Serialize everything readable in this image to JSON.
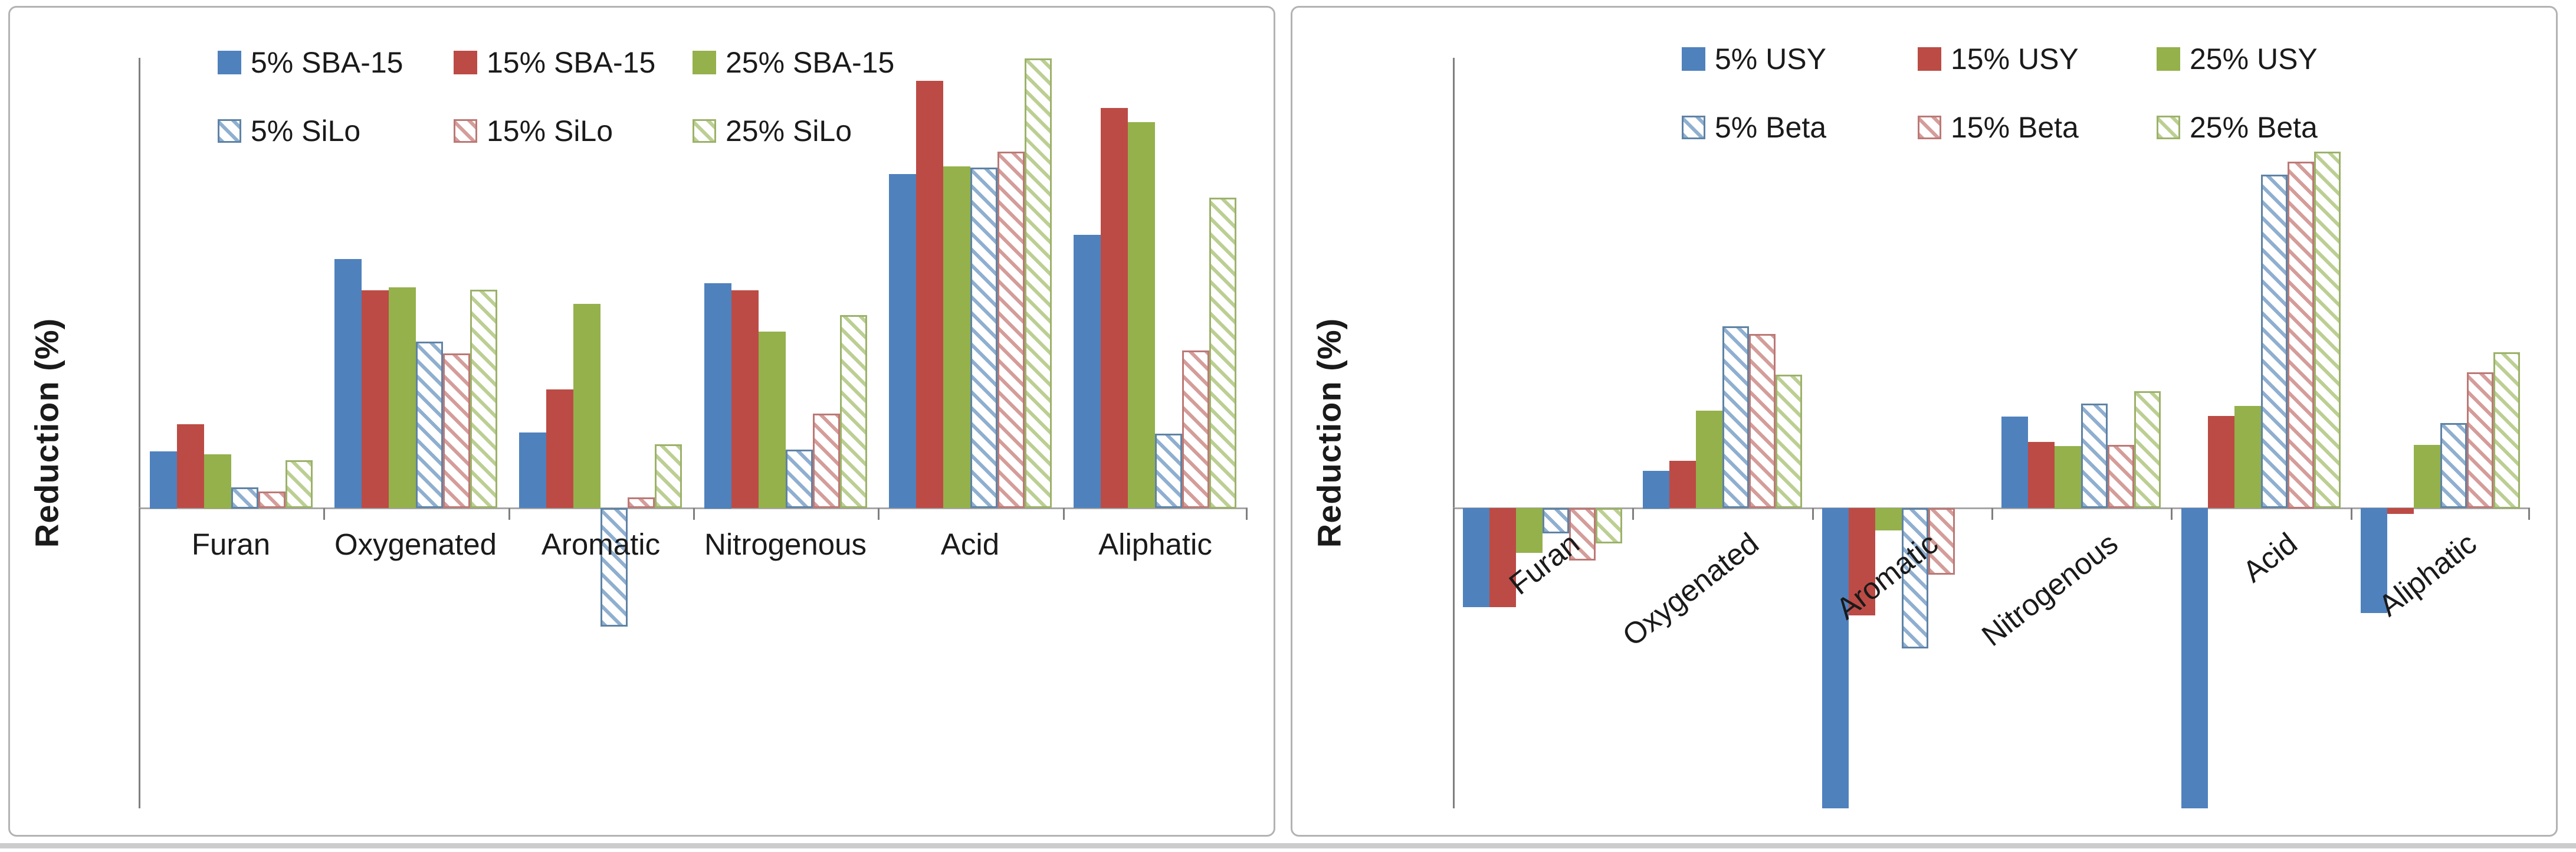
{
  "colors": {
    "solid": [
      "#4f81bd",
      "#bc4b45",
      "#94b14c"
    ],
    "hatch_stripe": [
      "#8fafd0",
      "#d49d9a",
      "#bccf93"
    ],
    "hatch_border": [
      "#5f83a5",
      "#bc7976",
      "#9cb26a"
    ],
    "axis": "#7f7f7f",
    "zero_line": "#a6a6a6",
    "text": "#1a1a1a",
    "panel_border": "#b3b3b3"
  },
  "chart_data": [
    {
      "type": "bar",
      "title": "",
      "xlabel": "",
      "ylabel": "Reduction (%)",
      "ylim": [
        -40,
        60
      ],
      "grid": false,
      "legend_position": "top-inside-two-rows",
      "category_labels_rotated": false,
      "y_ticks": [
        "60.00",
        "50.00",
        "40.00",
        "30.00",
        "20.00",
        "10.00",
        "0.00",
        "-10.00",
        "-20.00",
        "-30.00",
        "-40.00"
      ],
      "categories": [
        "Furan",
        "Oxygenated",
        "Aromatic",
        "Nitrogenous",
        "Acid",
        "Aliphatic"
      ],
      "series": [
        {
          "name": "5% SBA-15",
          "fill": "solid-blue",
          "values": [
            7.6,
            33.2,
            10.1,
            30.0,
            44.5,
            36.4
          ]
        },
        {
          "name": "15% SBA-15",
          "fill": "solid-red",
          "values": [
            11.2,
            29.0,
            15.8,
            29.0,
            56.9,
            53.3
          ]
        },
        {
          "name": "25% SBA-15",
          "fill": "solid-green",
          "values": [
            7.2,
            29.4,
            27.2,
            23.5,
            45.5,
            51.4
          ]
        },
        {
          "name": "5% SiLo",
          "fill": "hatch-blue",
          "values": [
            2.8,
            22.2,
            -15.8,
            7.8,
            45.4,
            9.9
          ]
        },
        {
          "name": "15% SiLo",
          "fill": "hatch-red",
          "values": [
            2.2,
            20.6,
            1.4,
            12.6,
            47.5,
            21.0
          ]
        },
        {
          "name": "25% SiLo",
          "fill": "hatch-green",
          "values": [
            6.4,
            29.1,
            8.5,
            25.7,
            59.9,
            41.4
          ]
        }
      ]
    },
    {
      "type": "bar",
      "title": "",
      "xlabel": "",
      "ylabel": "Reduction (%)",
      "ylim": [
        -40,
        60
      ],
      "grid": false,
      "legend_position": "top-inside-two-rows",
      "category_labels_rotated": true,
      "y_ticks": [
        "60.00",
        "50.00",
        "40.00",
        "30.00",
        "20.00",
        "10.00",
        "0.00",
        "-10.00",
        "-20.00",
        "-30.00",
        "-40.00"
      ],
      "categories": [
        "Furan",
        "Oxygenated",
        "Aromatic",
        "Nitrogenous",
        "Acid",
        "Aliphatic"
      ],
      "series": [
        {
          "name": "5% USY",
          "fill": "solid-blue",
          "values": [
            -13.2,
            5.0,
            -40.3,
            12.2,
            -40.3,
            -14.0
          ]
        },
        {
          "name": "15% USY",
          "fill": "solid-red",
          "values": [
            -13.2,
            6.3,
            -14.3,
            8.8,
            12.3,
            -0.8
          ]
        },
        {
          "name": "25% USY",
          "fill": "solid-green",
          "values": [
            -6.0,
            13.0,
            -3.0,
            8.3,
            13.6,
            8.4
          ]
        },
        {
          "name": "5% Beta",
          "fill": "hatch-blue",
          "values": [
            -3.4,
            24.2,
            -18.7,
            13.9,
            44.4,
            11.3
          ]
        },
        {
          "name": "15% Beta",
          "fill": "hatch-red",
          "values": [
            -7.0,
            23.2,
            -8.9,
            8.4,
            46.2,
            18.1
          ]
        },
        {
          "name": "25% Beta",
          "fill": "hatch-green",
          "values": [
            -4.7,
            17.8,
            0.0,
            15.6,
            47.5,
            20.8
          ]
        }
      ]
    }
  ]
}
